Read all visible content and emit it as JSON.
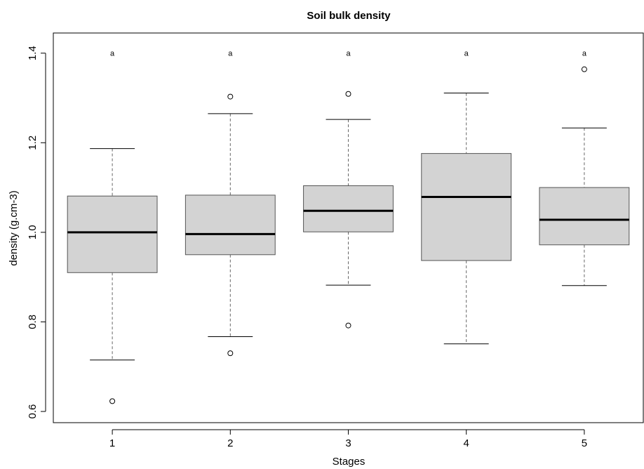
{
  "chart_data": {
    "type": "box",
    "title": "Soil bulk density",
    "xlabel": "Stages",
    "ylabel": "density (g.cm-3)",
    "categories": [
      "1",
      "2",
      "3",
      "4",
      "5"
    ],
    "ylim": [
      0.575,
      1.445
    ],
    "yticks": [
      0.6,
      0.8,
      1.0,
      1.2,
      1.4
    ],
    "ytick_labels": [
      "0.6",
      "0.8",
      "1.0",
      "1.2",
      "1.4"
    ],
    "grid": false,
    "legend": "none",
    "box_fill": "#d3d3d3",
    "boxes": [
      {
        "category": "1",
        "whisker_low": 0.715,
        "q1": 0.91,
        "median": 1.0,
        "q3": 1.081,
        "whisker_high": 1.187,
        "outliers": [
          0.623
        ]
      },
      {
        "category": "2",
        "whisker_low": 0.767,
        "q1": 0.95,
        "median": 0.996,
        "q3": 1.083,
        "whisker_high": 1.265,
        "outliers": [
          1.303,
          0.73
        ]
      },
      {
        "category": "3",
        "whisker_low": 0.882,
        "q1": 1.001,
        "median": 1.048,
        "q3": 1.104,
        "whisker_high": 1.252,
        "outliers": [
          1.309,
          0.792
        ]
      },
      {
        "category": "4",
        "whisker_low": 0.751,
        "q1": 0.937,
        "median": 1.079,
        "q3": 1.176,
        "whisker_high": 1.311,
        "outliers": []
      },
      {
        "category": "5",
        "whisker_low": 0.881,
        "q1": 0.972,
        "median": 1.028,
        "q3": 1.1,
        "whisker_high": 1.233,
        "outliers": [
          1.364
        ]
      }
    ],
    "annotations": [
      {
        "category": "1",
        "text": "a",
        "y": 1.4
      },
      {
        "category": "2",
        "text": "a",
        "y": 1.4
      },
      {
        "category": "3",
        "text": "a",
        "y": 1.4
      },
      {
        "category": "4",
        "text": "a",
        "y": 1.4
      },
      {
        "category": "5",
        "text": "a",
        "y": 1.4
      }
    ]
  }
}
